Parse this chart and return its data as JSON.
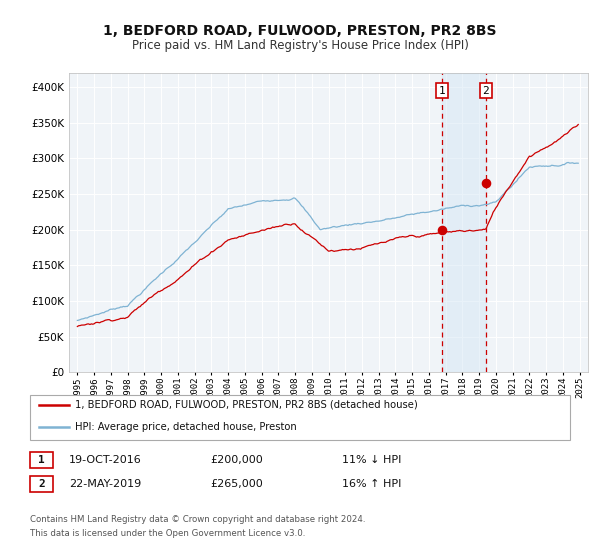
{
  "title": "1, BEDFORD ROAD, FULWOOD, PRESTON, PR2 8BS",
  "subtitle": "Price paid vs. HM Land Registry's House Price Index (HPI)",
  "legend_line1": "1, BEDFORD ROAD, FULWOOD, PRESTON, PR2 8BS (detached house)",
  "legend_line2": "HPI: Average price, detached house, Preston",
  "sale1_date": "19-OCT-2016",
  "sale1_price": "£200,000",
  "sale1_hpi": "11% ↓ HPI",
  "sale1_x": 2016.8,
  "sale1_y": 200000,
  "sale2_date": "22-MAY-2019",
  "sale2_price": "£265,000",
  "sale2_hpi": "16% ↑ HPI",
  "sale2_x": 2019.4,
  "sale2_y": 265000,
  "footer1": "Contains HM Land Registry data © Crown copyright and database right 2024.",
  "footer2": "This data is licensed under the Open Government Licence v3.0.",
  "red_color": "#cc0000",
  "blue_color": "#7fb3d3",
  "background_color": "#f0f4f8",
  "shaded_region_color": "#d6e8f5",
  "ylim": [
    0,
    420000
  ],
  "xlim_start": 1994.5,
  "xlim_end": 2025.5
}
